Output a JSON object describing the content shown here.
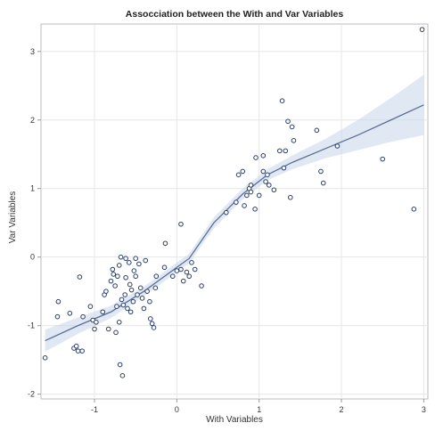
{
  "chart_data": {
    "type": "scatter",
    "title": "Assocciation between the With and Var Variables",
    "xlabel": "With Variables",
    "ylabel": "Var Variables",
    "xlim": [
      -1.65,
      3.05
    ],
    "ylim": [
      -2.07,
      3.4
    ],
    "xticks": [
      -1,
      0,
      1,
      2,
      3
    ],
    "yticks": [
      -2,
      -1,
      0,
      1,
      2,
      3
    ],
    "xtick_labels": [
      "-1",
      "0",
      "1",
      "2",
      "3"
    ],
    "ytick_labels": [
      "-2",
      "-1",
      "0",
      "1",
      "2",
      "3"
    ],
    "grid": true,
    "colors": {
      "points": "#2c3e6b",
      "trend": "#5b6f95",
      "band": "#c6d6ea",
      "grid": "#e6e6e6",
      "frame": "#bbbbbb"
    },
    "points": [
      [
        -1.6,
        -1.47
      ],
      [
        -1.45,
        -0.87
      ],
      [
        -1.44,
        -0.65
      ],
      [
        -1.3,
        -0.82
      ],
      [
        -1.25,
        -1.33
      ],
      [
        -1.22,
        -1.3
      ],
      [
        -1.2,
        -1.37
      ],
      [
        -1.18,
        -0.29
      ],
      [
        -1.15,
        -1.37
      ],
      [
        -1.14,
        -0.87
      ],
      [
        -1.05,
        -0.72
      ],
      [
        -1.02,
        -0.92
      ],
      [
        -1.0,
        -1.05
      ],
      [
        -0.98,
        -0.95
      ],
      [
        -0.9,
        -0.8
      ],
      [
        -0.88,
        -0.55
      ],
      [
        -0.86,
        -0.5
      ],
      [
        -0.83,
        -1.05
      ],
      [
        -0.8,
        -0.35
      ],
      [
        -0.78,
        -0.18
      ],
      [
        -0.77,
        -0.25
      ],
      [
        -0.75,
        -0.42
      ],
      [
        -0.74,
        -1.1
      ],
      [
        -0.73,
        -0.72
      ],
      [
        -0.72,
        -0.28
      ],
      [
        -0.7,
        -0.12
      ],
      [
        -0.7,
        -0.95
      ],
      [
        -0.69,
        -1.57
      ],
      [
        -0.68,
        0.0
      ],
      [
        -0.67,
        -0.62
      ],
      [
        -0.65,
        -0.7
      ],
      [
        -0.63,
        -0.55
      ],
      [
        -0.62,
        -0.3
      ],
      [
        -0.62,
        -0.02
      ],
      [
        -0.6,
        -0.75
      ],
      [
        -0.58,
        -0.08
      ],
      [
        -0.57,
        -0.4
      ],
      [
        -0.56,
        -0.8
      ],
      [
        -0.55,
        -0.48
      ],
      [
        -0.53,
        -0.65
      ],
      [
        -0.52,
        -0.2
      ],
      [
        -0.5,
        -0.28
      ],
      [
        -0.5,
        -0.02
      ],
      [
        -0.48,
        -0.55
      ],
      [
        -0.46,
        -0.1
      ],
      [
        -0.44,
        -0.45
      ],
      [
        -0.42,
        -0.6
      ],
      [
        -0.4,
        -0.75
      ],
      [
        -0.38,
        -0.05
      ],
      [
        -0.36,
        -0.5
      ],
      [
        -0.33,
        -0.65
      ],
      [
        -0.32,
        -0.9
      ],
      [
        -0.3,
        -0.97
      ],
      [
        -0.28,
        -1.03
      ],
      [
        -0.26,
        -0.45
      ],
      [
        -0.25,
        -0.28
      ],
      [
        -0.66,
        -1.73
      ],
      [
        -0.15,
        -0.15
      ],
      [
        -0.14,
        0.2
      ],
      [
        -0.05,
        -0.28
      ],
      [
        0.0,
        -0.2
      ],
      [
        0.05,
        -0.18
      ],
      [
        0.05,
        0.48
      ],
      [
        0.08,
        -0.35
      ],
      [
        0.12,
        -0.22
      ],
      [
        0.15,
        -0.28
      ],
      [
        0.18,
        -0.08
      ],
      [
        0.22,
        -0.18
      ],
      [
        0.3,
        -0.42
      ],
      [
        0.6,
        0.65
      ],
      [
        0.72,
        0.8
      ],
      [
        0.75,
        1.2
      ],
      [
        0.8,
        1.25
      ],
      [
        0.82,
        0.75
      ],
      [
        0.85,
        0.9
      ],
      [
        0.88,
        1.0
      ],
      [
        0.9,
        1.05
      ],
      [
        0.9,
        0.95
      ],
      [
        0.95,
        0.7
      ],
      [
        0.96,
        1.45
      ],
      [
        1.0,
        0.9
      ],
      [
        1.05,
        1.25
      ],
      [
        1.05,
        1.48
      ],
      [
        1.08,
        1.1
      ],
      [
        1.1,
        1.2
      ],
      [
        1.12,
        1.05
      ],
      [
        1.18,
        0.98
      ],
      [
        1.25,
        1.55
      ],
      [
        1.28,
        2.28
      ],
      [
        1.3,
        1.3
      ],
      [
        1.32,
        1.55
      ],
      [
        1.35,
        1.98
      ],
      [
        1.38,
        0.87
      ],
      [
        1.4,
        1.9
      ],
      [
        1.42,
        1.7
      ],
      [
        1.7,
        1.85
      ],
      [
        1.75,
        1.25
      ],
      [
        1.78,
        1.08
      ],
      [
        1.95,
        1.62
      ],
      [
        2.5,
        1.43
      ],
      [
        2.88,
        0.7
      ],
      [
        2.98,
        3.32
      ]
    ],
    "trend_line": {
      "x": [
        -1.6,
        -1.2,
        -0.8,
        -0.4,
        0.0,
        0.15,
        0.45,
        0.8,
        1.1,
        1.4,
        1.8,
        2.2,
        2.6,
        3.0
      ],
      "y": [
        -1.22,
        -1.0,
        -0.8,
        -0.5,
        -0.15,
        -0.02,
        0.5,
        0.92,
        1.2,
        1.38,
        1.58,
        1.78,
        2.0,
        2.22
      ],
      "band_half_width": [
        0.16,
        0.12,
        0.09,
        0.07,
        0.07,
        0.07,
        0.08,
        0.08,
        0.08,
        0.1,
        0.14,
        0.22,
        0.32,
        0.44
      ]
    }
  }
}
